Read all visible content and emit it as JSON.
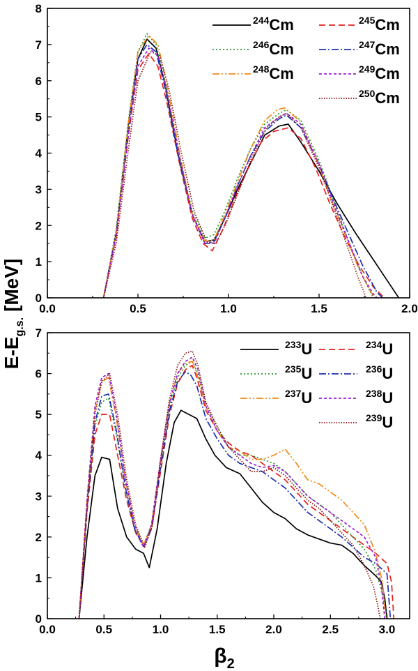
{
  "ylabel": {
    "main": "E-E",
    "sub": "g.s.",
    "unit": "[MeV]"
  },
  "xlabel": {
    "main": "β",
    "sub": "2"
  },
  "chart_data": [
    {
      "type": "line",
      "panel": "top",
      "xlim": [
        0.0,
        2.0
      ],
      "ylim": [
        0,
        8
      ],
      "xticks": [
        "0.0",
        "0.5",
        "1.0",
        "1.5",
        "2.0"
      ],
      "yticks": [
        "0",
        "1",
        "2",
        "3",
        "4",
        "5",
        "6",
        "7",
        "8"
      ],
      "legend_position": "top-right",
      "series": [
        {
          "name": "Cm",
          "mass": "244",
          "color": "#000000",
          "dash": "",
          "x": [
            0.31,
            0.38,
            0.45,
            0.5,
            0.55,
            0.6,
            0.65,
            0.72,
            0.8,
            0.87,
            0.92,
            0.98,
            1.05,
            1.12,
            1.2,
            1.28,
            1.33,
            1.4,
            1.5,
            1.6,
            1.7,
            1.8,
            1.88,
            1.94
          ],
          "y": [
            0.0,
            1.8,
            4.9,
            6.6,
            7.15,
            6.9,
            5.9,
            4.0,
            2.3,
            1.55,
            1.6,
            2.2,
            3.0,
            3.7,
            4.5,
            4.75,
            4.8,
            4.3,
            3.5,
            2.6,
            1.8,
            1.05,
            0.45,
            0.0
          ]
        },
        {
          "name": "Cm",
          "mass": "245",
          "color": "#e4201d",
          "dash": "9,5",
          "x": [
            0.31,
            0.38,
            0.45,
            0.5,
            0.56,
            0.61,
            0.66,
            0.73,
            0.8,
            0.86,
            0.91,
            0.97,
            1.04,
            1.11,
            1.18,
            1.25,
            1.33,
            1.4,
            1.48,
            1.56,
            1.64,
            1.72,
            1.8,
            1.86
          ],
          "y": [
            0.0,
            1.7,
            4.6,
            6.3,
            6.75,
            6.4,
            5.4,
            3.7,
            2.2,
            1.5,
            1.3,
            1.9,
            2.8,
            3.6,
            4.3,
            4.6,
            4.7,
            4.4,
            3.6,
            2.6,
            1.7,
            0.9,
            0.3,
            0.0
          ]
        },
        {
          "name": "Cm",
          "mass": "246",
          "color": "#2a9a2a",
          "dash": "2,3",
          "x": [
            0.31,
            0.38,
            0.45,
            0.5,
            0.55,
            0.6,
            0.65,
            0.72,
            0.8,
            0.87,
            0.92,
            0.98,
            1.05,
            1.12,
            1.2,
            1.28,
            1.32,
            1.4,
            1.5,
            1.58,
            1.66,
            1.74,
            1.8
          ],
          "y": [
            0.0,
            1.9,
            5.0,
            6.8,
            7.3,
            7.0,
            6.0,
            4.1,
            2.4,
            1.65,
            1.75,
            2.4,
            3.3,
            4.1,
            4.8,
            5.1,
            5.2,
            4.9,
            3.8,
            2.7,
            1.6,
            0.6,
            0.0
          ]
        },
        {
          "name": "Cm",
          "mass": "247",
          "color": "#1c2fb0",
          "dash": "10,3,2,3",
          "x": [
            0.31,
            0.38,
            0.45,
            0.5,
            0.55,
            0.6,
            0.65,
            0.72,
            0.8,
            0.87,
            0.92,
            0.98,
            1.05,
            1.12,
            1.2,
            1.28,
            1.32,
            1.4,
            1.5,
            1.58,
            1.66,
            1.74,
            1.82,
            1.85
          ],
          "y": [
            0.0,
            1.8,
            4.8,
            6.6,
            7.0,
            6.8,
            5.8,
            4.0,
            2.3,
            1.5,
            1.55,
            2.2,
            3.1,
            3.9,
            4.6,
            4.95,
            5.05,
            4.7,
            3.7,
            2.7,
            1.8,
            0.9,
            0.15,
            0.0
          ]
        },
        {
          "name": "Cm",
          "mass": "248",
          "color": "#f08a17",
          "dash": "10,3,2,3,2,3",
          "x": [
            0.31,
            0.38,
            0.45,
            0.5,
            0.56,
            0.61,
            0.66,
            0.73,
            0.8,
            0.87,
            0.92,
            0.98,
            1.05,
            1.12,
            1.2,
            1.27,
            1.31,
            1.39,
            1.48,
            1.56,
            1.64,
            1.72,
            1.78,
            1.81
          ],
          "y": [
            0.0,
            1.8,
            4.9,
            6.8,
            7.25,
            7.0,
            5.9,
            4.0,
            2.3,
            1.55,
            1.6,
            2.3,
            3.2,
            4.1,
            4.9,
            5.2,
            5.25,
            4.9,
            3.9,
            2.8,
            1.8,
            0.8,
            0.2,
            0.0
          ]
        },
        {
          "name": "Cm",
          "mass": "249",
          "color": "#9a1fd4",
          "dash": "4,3",
          "x": [
            0.31,
            0.38,
            0.45,
            0.5,
            0.56,
            0.61,
            0.66,
            0.73,
            0.8,
            0.87,
            0.92,
            0.98,
            1.05,
            1.12,
            1.2,
            1.28,
            1.32,
            1.4,
            1.5,
            1.58,
            1.66,
            1.74,
            1.8,
            1.82
          ],
          "y": [
            0.0,
            1.7,
            4.6,
            6.4,
            6.9,
            6.7,
            5.7,
            3.9,
            2.3,
            1.5,
            1.5,
            2.2,
            3.1,
            3.9,
            4.7,
            5.0,
            5.1,
            4.8,
            3.7,
            2.6,
            1.6,
            0.6,
            0.1,
            0.0
          ]
        },
        {
          "name": "Cm",
          "mass": "250",
          "color": "#8b1010",
          "dash": "1.5,2",
          "x": [
            0.31,
            0.38,
            0.45,
            0.5,
            0.57,
            0.62,
            0.67,
            0.74,
            0.81,
            0.88,
            0.93,
            0.99,
            1.06,
            1.13,
            1.21,
            1.28,
            1.32,
            1.4,
            1.5,
            1.58,
            1.65,
            1.72,
            1.76
          ],
          "y": [
            0.0,
            1.5,
            4.2,
            6.0,
            6.8,
            6.7,
            5.8,
            4.0,
            2.4,
            1.55,
            1.5,
            2.1,
            3.0,
            3.9,
            4.7,
            5.0,
            5.1,
            4.7,
            3.6,
            2.5,
            1.5,
            0.5,
            0.0
          ]
        }
      ]
    },
    {
      "type": "line",
      "panel": "bottom",
      "xlim": [
        0.0,
        3.2
      ],
      "ylim": [
        0,
        7
      ],
      "xticks": [
        "0.0",
        "0.5",
        "1.0",
        "1.5",
        "2.0",
        "2.5",
        "3.0"
      ],
      "yticks": [
        "0",
        "1",
        "2",
        "3",
        "4",
        "5",
        "6",
        "7"
      ],
      "legend_position": "top-right",
      "series": [
        {
          "name": "U",
          "mass": "233",
          "color": "#000000",
          "dash": "",
          "x": [
            0.28,
            0.35,
            0.42,
            0.48,
            0.55,
            0.62,
            0.7,
            0.78,
            0.85,
            0.9,
            0.97,
            1.05,
            1.12,
            1.18,
            1.25,
            1.32,
            1.4,
            1.48,
            1.58,
            1.7,
            1.8,
            1.9,
            2.0,
            2.1,
            2.2,
            2.3,
            2.4,
            2.5,
            2.6,
            2.7,
            2.8,
            2.9,
            2.95,
            2.98,
            3.0
          ],
          "y": [
            0.0,
            2.0,
            3.5,
            3.95,
            3.9,
            2.7,
            2.0,
            1.7,
            1.6,
            1.25,
            2.2,
            3.8,
            4.8,
            5.1,
            5.0,
            4.9,
            4.4,
            4.0,
            3.7,
            3.55,
            3.2,
            2.85,
            2.6,
            2.45,
            2.2,
            2.05,
            1.95,
            1.85,
            1.8,
            1.6,
            1.3,
            1.05,
            0.9,
            0.5,
            0.0
          ]
        },
        {
          "name": "U",
          "mass": "234",
          "color": "#e4201d",
          "dash": "9,5",
          "x": [
            0.28,
            0.35,
            0.42,
            0.48,
            0.55,
            0.62,
            0.7,
            0.78,
            0.85,
            0.92,
            1.0,
            1.08,
            1.15,
            1.22,
            1.28,
            1.32,
            1.4,
            1.5,
            1.6,
            1.7,
            1.8,
            1.9,
            2.0,
            2.1,
            2.2,
            2.3,
            2.4,
            2.5,
            2.6,
            2.7,
            2.8,
            2.9,
            3.0,
            3.04,
            3.06
          ],
          "y": [
            0.0,
            2.6,
            4.5,
            5.0,
            5.0,
            4.0,
            2.9,
            2.1,
            1.8,
            2.2,
            3.6,
            5.0,
            5.75,
            6.1,
            6.2,
            5.9,
            5.1,
            4.6,
            4.3,
            4.1,
            4.0,
            3.8,
            3.6,
            3.4,
            3.1,
            2.8,
            2.6,
            2.4,
            2.2,
            2.0,
            1.8,
            1.6,
            1.35,
            0.9,
            0.0
          ]
        },
        {
          "name": "U",
          "mass": "235",
          "color": "#2a9a2a",
          "dash": "2,3",
          "x": [
            0.28,
            0.35,
            0.42,
            0.48,
            0.54,
            0.61,
            0.69,
            0.77,
            0.85,
            0.92,
            1.0,
            1.08,
            1.15,
            1.22,
            1.28,
            1.33,
            1.4,
            1.5,
            1.6,
            1.7,
            1.8,
            1.9,
            2.0,
            2.1,
            2.2,
            2.3,
            2.4,
            2.5,
            2.6,
            2.7,
            2.8,
            2.9,
            2.96,
            3.0
          ],
          "y": [
            0.0,
            2.7,
            4.7,
            5.3,
            5.4,
            4.5,
            3.2,
            2.2,
            1.8,
            2.3,
            3.8,
            5.2,
            5.9,
            6.2,
            6.3,
            6.0,
            5.2,
            4.7,
            4.2,
            4.0,
            4.0,
            3.9,
            3.8,
            3.6,
            3.3,
            3.0,
            2.8,
            2.6,
            2.3,
            2.0,
            1.7,
            1.2,
            0.6,
            0.0
          ]
        },
        {
          "name": "U",
          "mass": "236",
          "color": "#1c2fb0",
          "dash": "10,3,2,3",
          "x": [
            0.28,
            0.35,
            0.42,
            0.48,
            0.54,
            0.61,
            0.69,
            0.77,
            0.85,
            0.92,
            1.0,
            1.08,
            1.15,
            1.22,
            1.27,
            1.32,
            1.4,
            1.5,
            1.6,
            1.7,
            1.8,
            1.9,
            2.0,
            2.1,
            2.2,
            2.3,
            2.4,
            2.5,
            2.6,
            2.7,
            2.8,
            2.9,
            3.0,
            3.03
          ],
          "y": [
            0.0,
            2.7,
            4.8,
            5.45,
            5.5,
            4.6,
            3.2,
            2.2,
            1.75,
            2.2,
            3.7,
            5.1,
            5.8,
            6.05,
            5.95,
            5.7,
            4.9,
            4.4,
            4.0,
            3.8,
            3.7,
            3.6,
            3.4,
            3.2,
            2.9,
            2.6,
            2.4,
            2.2,
            2.0,
            1.75,
            1.5,
            1.35,
            1.1,
            0.0
          ]
        },
        {
          "name": "U",
          "mass": "237",
          "color": "#f08a17",
          "dash": "10,3,2,3,2,3",
          "x": [
            0.28,
            0.35,
            0.42,
            0.48,
            0.54,
            0.61,
            0.69,
            0.77,
            0.85,
            0.92,
            1.0,
            1.08,
            1.15,
            1.22,
            1.28,
            1.32,
            1.4,
            1.5,
            1.6,
            1.7,
            1.8,
            1.9,
            2.0,
            2.1,
            2.2,
            2.3,
            2.4,
            2.5,
            2.6,
            2.7,
            2.8,
            2.9,
            2.96,
            2.99
          ],
          "y": [
            0.0,
            2.9,
            5.1,
            5.8,
            5.9,
            4.9,
            3.4,
            2.3,
            1.8,
            2.3,
            3.9,
            5.3,
            6.0,
            6.25,
            6.3,
            6.0,
            5.2,
            4.6,
            4.2,
            4.1,
            3.9,
            3.9,
            4.0,
            4.15,
            3.8,
            3.4,
            3.3,
            3.1,
            2.9,
            2.6,
            2.3,
            1.6,
            0.9,
            0.0
          ]
        },
        {
          "name": "U",
          "mass": "238",
          "color": "#9a1fd4",
          "dash": "4,3",
          "x": [
            0.28,
            0.35,
            0.42,
            0.48,
            0.54,
            0.61,
            0.69,
            0.77,
            0.85,
            0.92,
            1.0,
            1.08,
            1.15,
            1.22,
            1.28,
            1.33,
            1.4,
            1.5,
            1.6,
            1.7,
            1.8,
            1.9,
            2.0,
            2.1,
            2.2,
            2.3,
            2.4,
            2.5,
            2.6,
            2.7,
            2.8,
            2.9,
            2.95,
            2.98
          ],
          "y": [
            0.0,
            2.9,
            5.2,
            5.9,
            6.0,
            5.0,
            3.4,
            2.3,
            1.75,
            2.3,
            3.9,
            5.3,
            6.0,
            6.3,
            6.4,
            6.1,
            5.2,
            4.6,
            4.2,
            4.0,
            3.8,
            3.7,
            3.75,
            3.6,
            3.3,
            3.0,
            2.8,
            2.6,
            2.4,
            2.2,
            2.0,
            1.5,
            0.8,
            0.0
          ]
        },
        {
          "name": "U",
          "mass": "239",
          "color": "#8b1010",
          "dash": "1.5,2",
          "x": [
            0.28,
            0.35,
            0.42,
            0.48,
            0.55,
            0.62,
            0.7,
            0.78,
            0.86,
            0.93,
            1.0,
            1.08,
            1.15,
            1.22,
            1.28,
            1.33,
            1.4,
            1.5,
            1.6,
            1.7,
            1.8,
            1.9,
            2.0,
            2.1,
            2.2,
            2.3,
            2.4,
            2.5,
            2.6,
            2.7,
            2.8,
            2.88,
            2.92,
            2.94
          ],
          "y": [
            0.0,
            2.8,
            5.0,
            5.8,
            6.0,
            5.0,
            3.4,
            2.3,
            1.75,
            2.3,
            3.9,
            5.4,
            6.2,
            6.5,
            6.55,
            6.2,
            5.3,
            4.7,
            4.2,
            3.9,
            3.6,
            3.6,
            3.7,
            3.5,
            3.2,
            2.9,
            2.7,
            2.4,
            2.1,
            1.8,
            1.3,
            0.8,
            0.3,
            0.0
          ]
        }
      ]
    }
  ]
}
